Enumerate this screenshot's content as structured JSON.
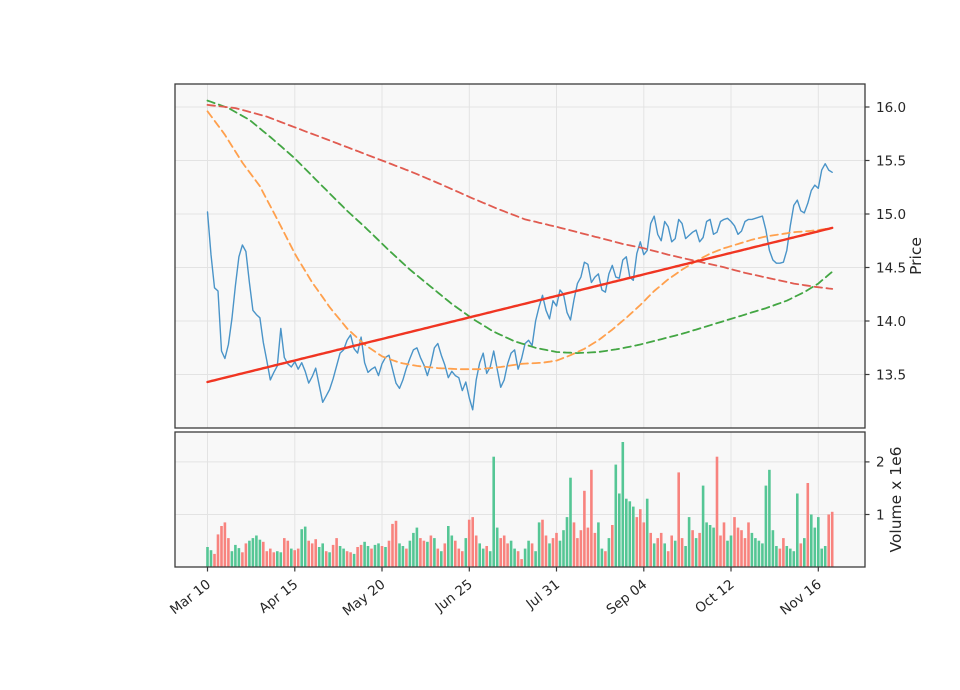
{
  "chart_data": {
    "type": "line+bar",
    "title": "",
    "n_points": 180,
    "x_axis": {
      "tick_labels": [
        "Mar 10",
        "Apr 15",
        "May 20",
        "Jun 25",
        "Jul 31",
        "Sep 04",
        "Oct 12",
        "Nov 16"
      ],
      "tick_indexes": [
        0,
        25,
        50,
        75,
        100,
        125,
        150,
        175
      ],
      "label_rotation_deg": -38
    },
    "price_axis": {
      "label": "Price",
      "tick_labels": [
        "16.0",
        "15.5",
        "15.0",
        "14.5",
        "14.0",
        "13.5"
      ],
      "tick_values": [
        16.0,
        15.5,
        15.0,
        14.5,
        14.0,
        13.5
      ],
      "ylim": [
        13.0,
        16.215
      ],
      "side": "right"
    },
    "volume_axis": {
      "label": "Volume x 1e6",
      "tick_labels": [
        "2",
        "1"
      ],
      "tick_values": [
        2,
        1
      ],
      "ylim": [
        0,
        2.57
      ],
      "side": "right"
    },
    "grid": true,
    "legend": "none",
    "colors": {
      "price": "#4a94c8",
      "ma_short": "#ffa04d",
      "ma_mid": "#43a643",
      "ma_long": "#e15b50",
      "trend": "#f03522",
      "vol_up": "#55c695",
      "vol_down": "#f8837e",
      "panel_bg": "#f8f8f8",
      "grid_line": "#e3e3e3",
      "spine": "#3b3b3b",
      "text": "#262626"
    },
    "series": [
      {
        "name": "price",
        "style": "solid",
        "width": 1.4,
        "color_key": "price",
        "values": [
          15.02,
          14.62,
          14.31,
          14.28,
          13.72,
          13.65,
          13.78,
          14.02,
          14.33,
          14.6,
          14.71,
          14.65,
          14.36,
          14.1,
          14.06,
          14.03,
          13.8,
          13.63,
          13.45,
          13.52,
          13.58,
          13.93,
          13.66,
          13.6,
          13.57,
          13.62,
          13.55,
          13.61,
          13.53,
          13.42,
          13.48,
          13.56,
          13.4,
          13.24,
          13.3,
          13.36,
          13.46,
          13.58,
          13.7,
          13.73,
          13.82,
          13.87,
          13.74,
          13.7,
          13.85,
          13.61,
          13.52,
          13.55,
          13.57,
          13.49,
          13.6,
          13.66,
          13.68,
          13.55,
          13.42,
          13.37,
          13.45,
          13.56,
          13.65,
          13.73,
          13.75,
          13.66,
          13.59,
          13.49,
          13.6,
          13.75,
          13.79,
          13.68,
          13.59,
          13.47,
          13.53,
          13.49,
          13.47,
          13.35,
          13.43,
          13.28,
          13.17,
          13.45,
          13.61,
          13.7,
          13.51,
          13.57,
          13.72,
          13.55,
          13.38,
          13.45,
          13.6,
          13.7,
          13.73,
          13.55,
          13.65,
          13.79,
          13.82,
          13.77,
          14.0,
          14.13,
          14.24,
          14.1,
          14.02,
          14.19,
          14.14,
          14.29,
          14.25,
          14.08,
          14.01,
          14.2,
          14.35,
          14.41,
          14.55,
          14.53,
          14.36,
          14.41,
          14.44,
          14.29,
          14.27,
          14.44,
          14.52,
          14.41,
          14.4,
          14.57,
          14.6,
          14.41,
          14.38,
          14.63,
          14.74,
          14.62,
          14.66,
          14.91,
          14.98,
          14.81,
          14.75,
          14.93,
          14.88,
          14.74,
          14.77,
          14.95,
          14.91,
          14.77,
          14.8,
          14.83,
          14.85,
          14.74,
          14.78,
          14.93,
          14.95,
          14.81,
          14.83,
          14.93,
          14.95,
          14.96,
          14.93,
          14.89,
          14.81,
          14.84,
          14.93,
          14.95,
          14.95,
          14.96,
          14.97,
          14.98,
          14.85,
          14.66,
          14.57,
          14.54,
          14.54,
          14.55,
          14.66,
          14.89,
          15.08,
          15.13,
          15.03,
          15.01,
          15.1,
          15.22,
          15.27,
          15.24,
          15.41,
          15.47,
          15.41,
          15.39
        ]
      },
      {
        "name": "ma-short",
        "style": "dashed",
        "width": 1.8,
        "color_key": "ma_short",
        "anchors": [
          [
            0,
            15.96
          ],
          [
            5,
            15.74
          ],
          [
            10,
            15.48
          ],
          [
            15,
            15.26
          ],
          [
            20,
            14.95
          ],
          [
            25,
            14.63
          ],
          [
            30,
            14.36
          ],
          [
            35,
            14.13
          ],
          [
            40,
            13.93
          ],
          [
            45,
            13.78
          ],
          [
            50,
            13.67
          ],
          [
            55,
            13.61
          ],
          [
            60,
            13.58
          ],
          [
            66,
            13.56
          ],
          [
            72,
            13.55
          ],
          [
            78,
            13.55
          ],
          [
            84,
            13.57
          ],
          [
            90,
            13.6
          ],
          [
            96,
            13.61
          ],
          [
            100,
            13.63
          ],
          [
            104,
            13.68
          ],
          [
            108,
            13.74
          ],
          [
            112,
            13.82
          ],
          [
            116,
            13.92
          ],
          [
            120,
            14.03
          ],
          [
            124,
            14.15
          ],
          [
            128,
            14.28
          ],
          [
            132,
            14.39
          ],
          [
            136,
            14.48
          ],
          [
            140,
            14.56
          ],
          [
            144,
            14.63
          ],
          [
            148,
            14.68
          ],
          [
            152,
            14.72
          ],
          [
            156,
            14.76
          ],
          [
            160,
            14.79
          ],
          [
            164,
            14.81
          ],
          [
            168,
            14.83
          ],
          [
            172,
            14.84
          ],
          [
            175,
            14.85
          ],
          [
            179,
            14.87
          ]
        ]
      },
      {
        "name": "ma-mid",
        "style": "dashed",
        "width": 1.8,
        "color_key": "ma_mid",
        "anchors": [
          [
            0,
            16.06
          ],
          [
            6,
            15.99
          ],
          [
            12,
            15.88
          ],
          [
            18,
            15.72
          ],
          [
            25,
            15.52
          ],
          [
            32,
            15.29
          ],
          [
            40,
            15.03
          ],
          [
            46,
            14.85
          ],
          [
            52,
            14.66
          ],
          [
            58,
            14.48
          ],
          [
            64,
            14.32
          ],
          [
            70,
            14.16
          ],
          [
            76,
            14.02
          ],
          [
            82,
            13.9
          ],
          [
            88,
            13.81
          ],
          [
            94,
            13.75
          ],
          [
            100,
            13.71
          ],
          [
            106,
            13.7
          ],
          [
            112,
            13.71
          ],
          [
            118,
            13.74
          ],
          [
            124,
            13.78
          ],
          [
            130,
            13.83
          ],
          [
            136,
            13.88
          ],
          [
            142,
            13.94
          ],
          [
            148,
            14.0
          ],
          [
            154,
            14.06
          ],
          [
            160,
            14.12
          ],
          [
            166,
            14.19
          ],
          [
            171,
            14.27
          ],
          [
            175,
            14.35
          ],
          [
            179,
            14.46
          ]
        ]
      },
      {
        "name": "ma-long",
        "style": "dashed",
        "width": 1.8,
        "color_key": "ma_long",
        "anchors": [
          [
            0,
            16.02
          ],
          [
            8,
            15.99
          ],
          [
            17,
            15.91
          ],
          [
            25,
            15.81
          ],
          [
            34,
            15.7
          ],
          [
            42,
            15.6
          ],
          [
            50,
            15.5
          ],
          [
            58,
            15.4
          ],
          [
            66,
            15.29
          ],
          [
            75,
            15.16
          ],
          [
            83,
            15.05
          ],
          [
            91,
            14.95
          ],
          [
            100,
            14.88
          ],
          [
            106,
            14.83
          ],
          [
            112,
            14.78
          ],
          [
            119,
            14.72
          ],
          [
            125,
            14.68
          ],
          [
            132,
            14.62
          ],
          [
            140,
            14.56
          ],
          [
            147,
            14.51
          ],
          [
            154,
            14.45
          ],
          [
            161,
            14.4
          ],
          [
            168,
            14.35
          ],
          [
            174,
            14.32
          ],
          [
            179,
            14.3
          ]
        ]
      },
      {
        "name": "trend",
        "style": "solid",
        "width": 2.4,
        "color_key": "trend",
        "anchors": [
          [
            0,
            13.43
          ],
          [
            179,
            14.87
          ]
        ]
      }
    ],
    "volume": {
      "values": [
        0.38,
        0.32,
        0.25,
        0.62,
        0.78,
        0.85,
        0.55,
        0.3,
        0.42,
        0.36,
        0.28,
        0.45,
        0.5,
        0.55,
        0.6,
        0.52,
        0.48,
        0.3,
        0.35,
        0.28,
        0.3,
        0.28,
        0.55,
        0.5,
        0.35,
        0.32,
        0.35,
        0.72,
        0.77,
        0.5,
        0.45,
        0.53,
        0.38,
        0.45,
        0.3,
        0.28,
        0.42,
        0.55,
        0.4,
        0.35,
        0.3,
        0.28,
        0.25,
        0.38,
        0.42,
        0.48,
        0.4,
        0.35,
        0.42,
        0.45,
        0.4,
        0.38,
        0.5,
        0.82,
        0.88,
        0.45,
        0.4,
        0.35,
        0.5,
        0.65,
        0.75,
        0.55,
        0.5,
        0.48,
        0.6,
        0.55,
        0.35,
        0.3,
        0.45,
        0.78,
        0.6,
        0.5,
        0.35,
        0.3,
        0.55,
        0.9,
        0.95,
        0.6,
        0.45,
        0.35,
        0.4,
        0.3,
        2.1,
        0.75,
        0.55,
        0.6,
        0.45,
        0.5,
        0.35,
        0.3,
        0.15,
        0.35,
        0.5,
        0.45,
        0.3,
        0.85,
        0.9,
        0.6,
        0.45,
        0.55,
        0.65,
        0.5,
        0.7,
        0.95,
        1.7,
        0.85,
        0.55,
        0.7,
        1.45,
        0.75,
        1.85,
        0.65,
        0.85,
        0.35,
        0.3,
        0.55,
        0.8,
        1.95,
        1.4,
        2.38,
        1.3,
        1.25,
        1.15,
        0.95,
        1.1,
        0.85,
        1.3,
        0.65,
        0.45,
        0.55,
        0.65,
        0.45,
        0.3,
        0.6,
        0.5,
        1.8,
        0.55,
        0.4,
        0.95,
        0.7,
        0.55,
        0.65,
        1.55,
        0.85,
        0.8,
        0.75,
        2.1,
        0.6,
        0.85,
        0.5,
        0.6,
        0.95,
        0.75,
        0.7,
        0.55,
        0.85,
        0.65,
        0.55,
        0.5,
        0.45,
        1.55,
        1.85,
        0.7,
        0.4,
        0.35,
        0.55,
        0.4,
        0.35,
        0.3,
        1.4,
        0.45,
        0.55,
        1.6,
        1.0,
        0.75,
        0.95,
        0.35,
        0.4,
        1.0,
        1.05
      ],
      "colors": "ggrrrrrgggrrggggrrrrggrrgrrggrrrggrgrrggrrgrrggrggrgrrrggrgggrrgrgrgrggrrrgrrrggrgggrrrggrrggrggrrgrrggggrrrrrrrggrgrggggggrrrgrgrrgrrgrrggrgrggggrrrggrrrrrggggggggrrggggrgrgggggrr"
    }
  },
  "labels": {
    "price_axis": "Price",
    "volume_axis": "Volume x 1e6"
  }
}
